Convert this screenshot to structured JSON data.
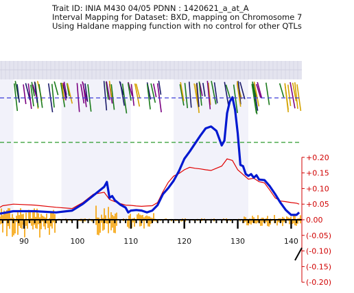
{
  "header": {
    "line1": "Trait ID: INIA M430 04/05 PDNN : 1420621_a_at_A",
    "line2": "Interval Mapping for Dataset: BXD, mapping on Chromosome 7",
    "line3": "Using Haldane mapping function with no control for other QTLs"
  },
  "colors": {
    "lrs_line": "#0018d0",
    "additive_line": "#e00000",
    "threshold_suggestive": "#2a9a2a",
    "threshold_significant": "#3a3ad8",
    "density": "#f5a000",
    "marker_track": "#e4e4ef",
    "snp_marks": [
      "#d4a200",
      "#1a1a6a",
      "#7a0080",
      "#1a7a1a"
    ]
  },
  "chart_data": {
    "type": "line",
    "x_unit": "Mb",
    "xlim": [
      85.5,
      142
    ],
    "x_ticks": [
      "90",
      "100",
      "110",
      "120",
      "130",
      "140"
    ],
    "right_axis": {
      "label_ticks": [
        "+0.20",
        "+0.15",
        "+0.10",
        "+0.05",
        "0.00",
        "(-0.05)",
        "(-0.10)",
        "(-0.15)",
        "(-0.20)"
      ],
      "range": [
        -0.2,
        0.2
      ]
    },
    "lrs_ylim": [
      0,
      20
    ],
    "thresholds": {
      "suggestive": 12.7,
      "significant": 20.0
    },
    "series": [
      {
        "role": "LRS",
        "x": [
          85.5,
          88,
          92,
          96,
          99,
          101,
          103,
          105,
          105.5,
          106,
          106.5,
          107,
          108,
          109,
          109.5,
          110,
          111,
          112,
          113,
          114,
          115,
          116,
          117,
          118,
          119,
          120,
          121,
          122,
          123,
          124,
          125,
          126,
          127,
          127.5,
          128,
          128.5,
          129,
          129.5,
          130,
          130.5,
          131,
          131.5,
          132,
          132.5,
          133,
          133.5,
          134,
          135,
          136,
          137,
          138,
          139,
          140,
          141,
          141.5
        ],
        "y": [
          1.0,
          1.4,
          1.4,
          1.2,
          1.5,
          2.6,
          4.0,
          5.4,
          6.2,
          3.6,
          3.9,
          3.2,
          2.5,
          2.0,
          1.2,
          1.5,
          1.6,
          1.5,
          1.2,
          1.5,
          2.4,
          4.2,
          5.2,
          6.4,
          8.0,
          10.0,
          11.2,
          12.5,
          13.8,
          15.0,
          15.3,
          14.6,
          12.2,
          13.0,
          17.5,
          19.4,
          20.1,
          18.0,
          14.2,
          9.0,
          8.8,
          7.5,
          7.2,
          7.5,
          6.9,
          7.3,
          6.6,
          6.5,
          5.5,
          4.2,
          2.8,
          1.6,
          0.8,
          0.8,
          1.2
        ]
      },
      {
        "role": "additive",
        "x": [
          85.5,
          86,
          88,
          92,
          96,
          99,
          101,
          103,
          105,
          106,
          107,
          108,
          109,
          110,
          111,
          112,
          113,
          114,
          115,
          116,
          117,
          118,
          119,
          120,
          121,
          122,
          123,
          124,
          125,
          126,
          127,
          128,
          129,
          130,
          131,
          132,
          133,
          134,
          135,
          136,
          137,
          138,
          139,
          140,
          141,
          141.5
        ],
        "y": [
          0.04,
          0.045,
          0.05,
          0.047,
          0.04,
          0.036,
          0.055,
          0.082,
          0.088,
          0.065,
          0.058,
          0.052,
          0.047,
          0.046,
          0.044,
          0.043,
          0.044,
          0.045,
          0.055,
          0.09,
          0.12,
          0.14,
          0.148,
          0.16,
          0.168,
          0.165,
          0.163,
          0.16,
          0.158,
          0.165,
          0.172,
          0.195,
          0.19,
          0.16,
          0.145,
          0.13,
          0.133,
          0.122,
          0.118,
          0.095,
          0.07,
          0.06,
          0.058,
          0.055,
          0.053,
          0.05
        ]
      }
    ]
  }
}
